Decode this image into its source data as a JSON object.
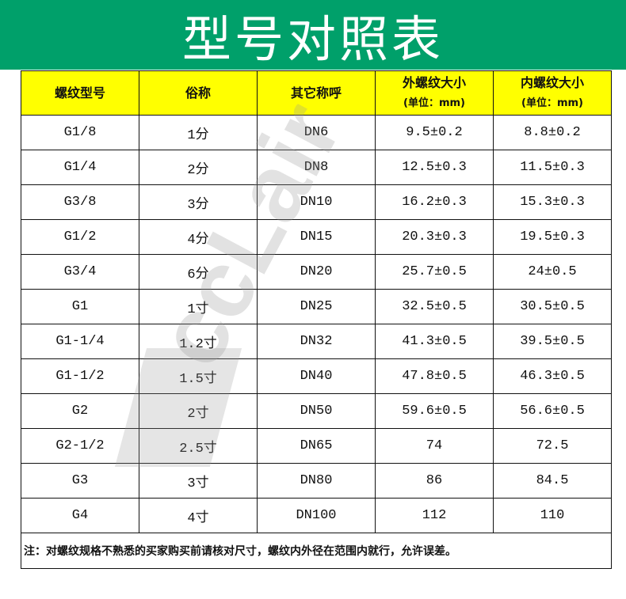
{
  "title": "型号对照表",
  "headers": [
    {
      "label": "螺纹型号",
      "unit": ""
    },
    {
      "label": "俗称",
      "unit": ""
    },
    {
      "label": "其它称呼",
      "unit": ""
    },
    {
      "label": "外螺纹大小",
      "unit": "(单位：mm)"
    },
    {
      "label": "内螺纹大小",
      "unit": "(单位：mm)"
    }
  ],
  "rows": [
    [
      "G1/8",
      "1分",
      "DN6",
      "9.5±0.2",
      "8.8±0.2"
    ],
    [
      "G1/4",
      "2分",
      "DN8",
      "12.5±0.3",
      "11.5±0.3"
    ],
    [
      "G3/8",
      "3分",
      "DN10",
      "16.2±0.3",
      "15.3±0.3"
    ],
    [
      "G1/2",
      "4分",
      "DN15",
      "20.3±0.3",
      "19.5±0.3"
    ],
    [
      "G3/4",
      "6分",
      "DN20",
      "25.7±0.5",
      "24±0.5"
    ],
    [
      "G1",
      "1寸",
      "DN25",
      "32.5±0.5",
      "30.5±0.5"
    ],
    [
      "G1-1/4",
      "1.2寸",
      "DN32",
      "41.3±0.5",
      "39.5±0.5"
    ],
    [
      "G1-1/2",
      "1.5寸",
      "DN40",
      "47.8±0.5",
      "46.3±0.5"
    ],
    [
      "G2",
      "2寸",
      "DN50",
      "59.6±0.5",
      "56.6±0.5"
    ],
    [
      "G2-1/2",
      "2.5寸",
      "DN65",
      "74",
      "72.5"
    ],
    [
      "G3",
      "3寸",
      "DN80",
      "86",
      "84.5"
    ],
    [
      "G4",
      "4寸",
      "DN100",
      "112",
      "110"
    ]
  ],
  "note": "注：对螺纹规格不熟悉的买家购买前请核对尺寸，螺纹内外径在范围内就行，允许误差。",
  "watermark": "ccLair",
  "colors": {
    "banner": "#00a06a",
    "header": "#ffff00"
  }
}
